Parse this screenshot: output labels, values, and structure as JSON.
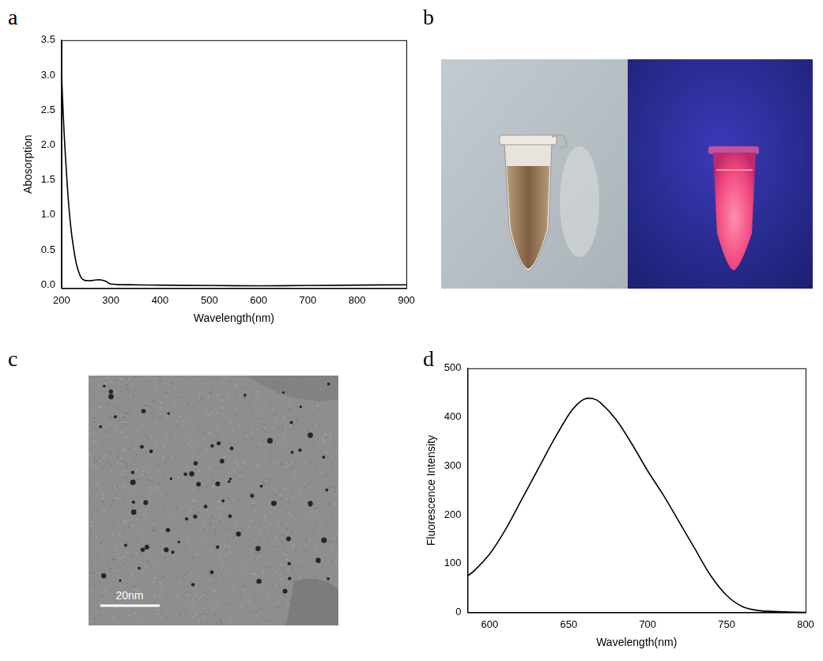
{
  "chart_data": [
    {
      "panel": "a",
      "type": "line",
      "x": [
        200,
        205,
        210,
        215,
        220,
        225,
        230,
        235,
        240,
        245,
        250,
        260,
        270,
        280,
        290,
        300,
        350,
        400,
        500,
        600,
        700,
        800,
        900
      ],
      "values": [
        3.0,
        2.2,
        1.6,
        1.1,
        0.75,
        0.5,
        0.3,
        0.18,
        0.1,
        0.07,
        0.06,
        0.06,
        0.07,
        0.07,
        0.05,
        0.01,
        0.0,
        -0.005,
        -0.01,
        -0.015,
        -0.01,
        -0.005,
        0.0
      ],
      "color": "#000000",
      "x_label": "Wavelength(nm)",
      "y_label": "Abosorption",
      "xlim": [
        200,
        900
      ],
      "xticks": [
        200,
        300,
        400,
        500,
        600,
        700,
        800,
        900
      ],
      "ylim": [
        -0.05,
        3.5
      ],
      "yticks": [
        {
          "value": 0,
          "label": "0.0"
        },
        0.5,
        {
          "value": 1,
          "label": "1.0"
        },
        1.5,
        {
          "value": 2,
          "label": "2.0"
        },
        2.5,
        {
          "value": 3,
          "label": "3.0"
        },
        3.5
      ],
      "grid": false
    },
    {
      "panel": "d",
      "type": "line",
      "x": [
        586,
        590,
        600,
        610,
        620,
        630,
        640,
        650,
        655,
        660,
        665,
        670,
        680,
        690,
        700,
        710,
        720,
        730,
        740,
        750,
        760,
        770,
        780,
        790,
        800
      ],
      "values": [
        75,
        85,
        120,
        170,
        230,
        290,
        350,
        405,
        425,
        437,
        438,
        430,
        395,
        345,
        290,
        240,
        185,
        130,
        75,
        35,
        12,
        4,
        2,
        1,
        0
      ],
      "color": "#000000",
      "x_label": "Wavelength(nm)",
      "y_label": "Fluorescence Intensity",
      "xlim": [
        586,
        800
      ],
      "xticks": [
        600,
        650,
        700,
        750,
        800
      ],
      "ylim": [
        0,
        500
      ],
      "yticks": [
        0,
        100,
        200,
        300,
        400,
        500
      ],
      "grid": false
    }
  ],
  "images": [
    {
      "panel": "b"
    },
    {
      "panel": "c",
      "scale_bar": "20nm"
    }
  ]
}
